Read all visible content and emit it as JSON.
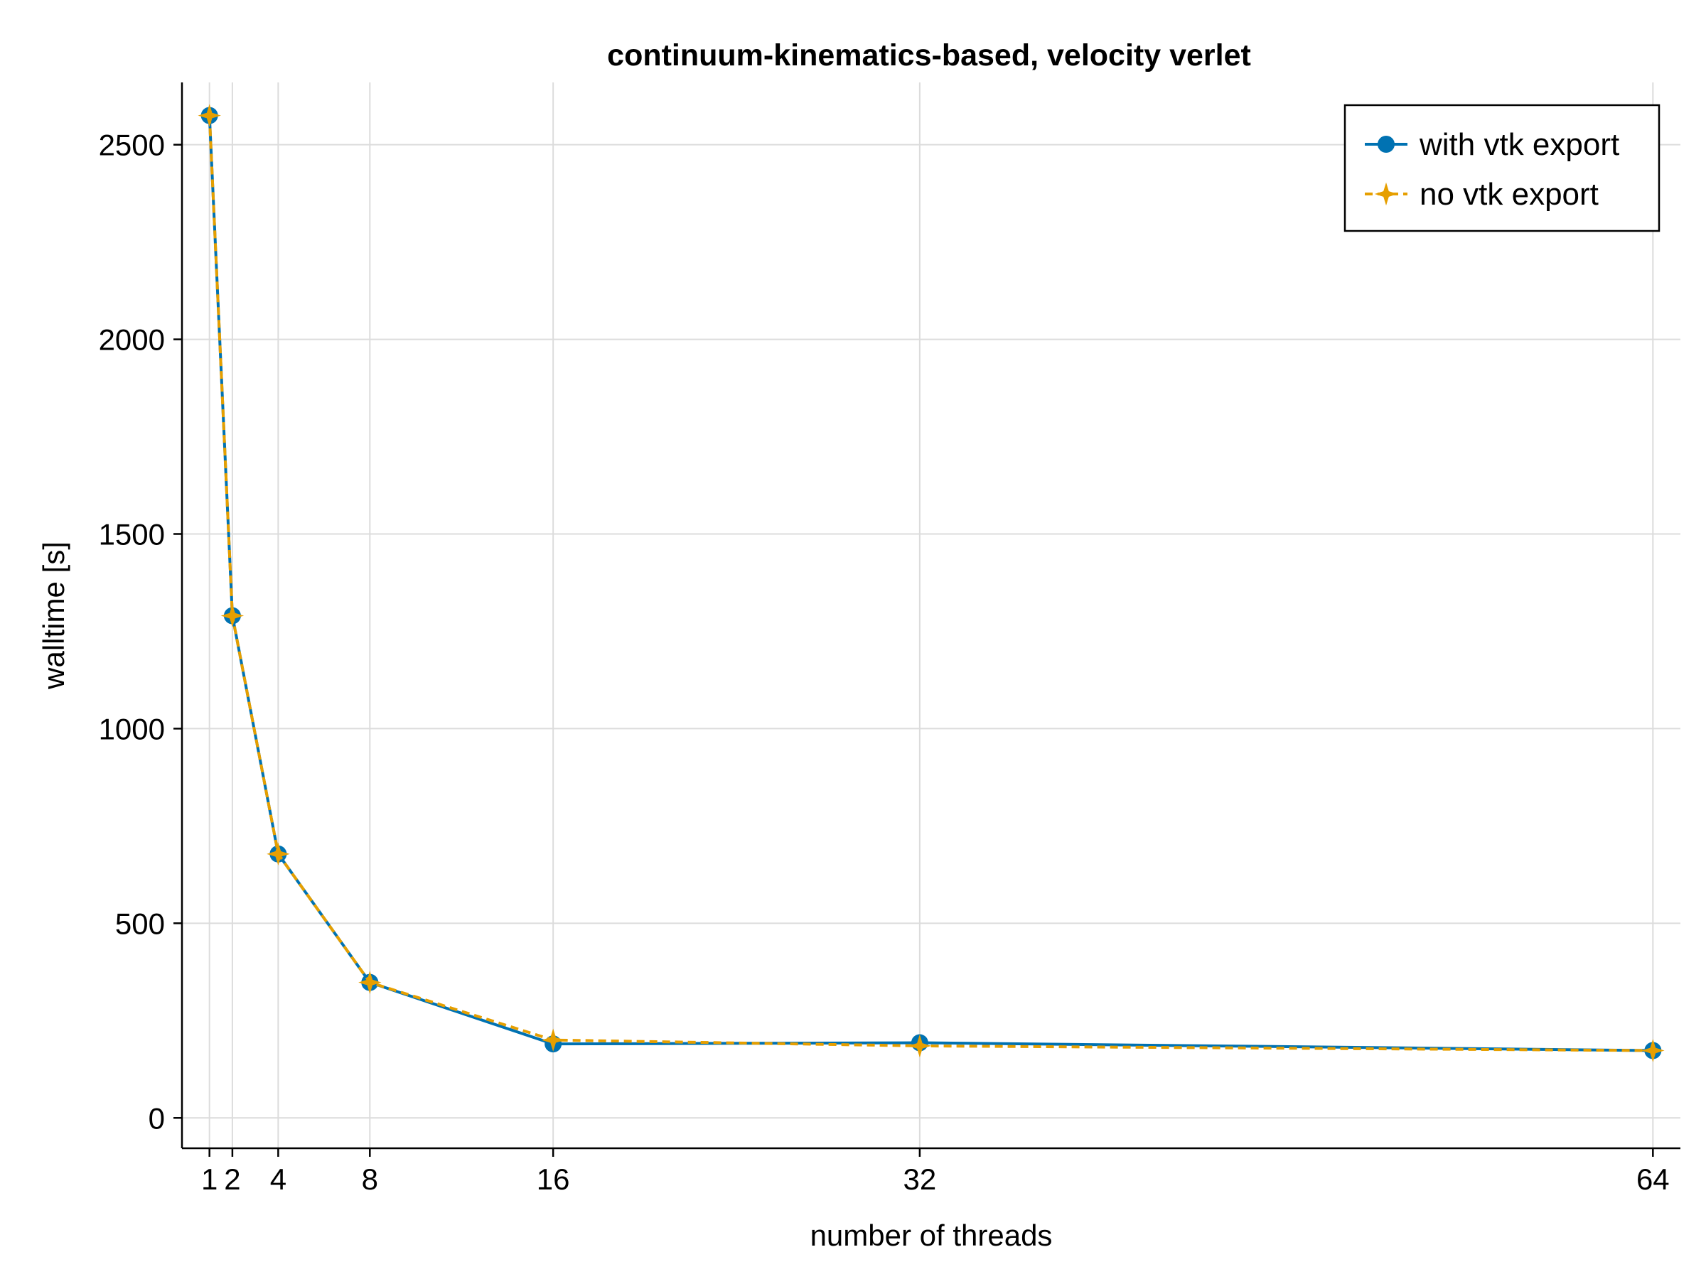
{
  "chart_data": {
    "type": "line",
    "title": "continuum-kinematics-based, velocity verlet",
    "xlabel": "number of threads",
    "ylabel": "walltime [s]",
    "x": [
      1,
      2,
      4,
      8,
      16,
      32,
      64
    ],
    "xticks": [
      1,
      2,
      4,
      8,
      16,
      32,
      64
    ],
    "yticks": [
      0,
      500,
      1000,
      1500,
      2000,
      2500
    ],
    "xlim": [
      -0.2,
      65.2
    ],
    "ylim": [
      -78,
      2660
    ],
    "grid": true,
    "legend_position": "top-right",
    "series": [
      {
        "name": "with vtk export",
        "values": [
          2575,
          1290,
          678,
          348,
          190,
          193,
          173
        ],
        "color": "#0072b2",
        "marker": "circle",
        "line_style": "solid"
      },
      {
        "name": "no vtk export",
        "values": [
          2575,
          1290,
          678,
          348,
          200,
          185,
          173
        ],
        "color": "#e69f00",
        "marker": "star4",
        "line_style": "dashed"
      }
    ]
  }
}
